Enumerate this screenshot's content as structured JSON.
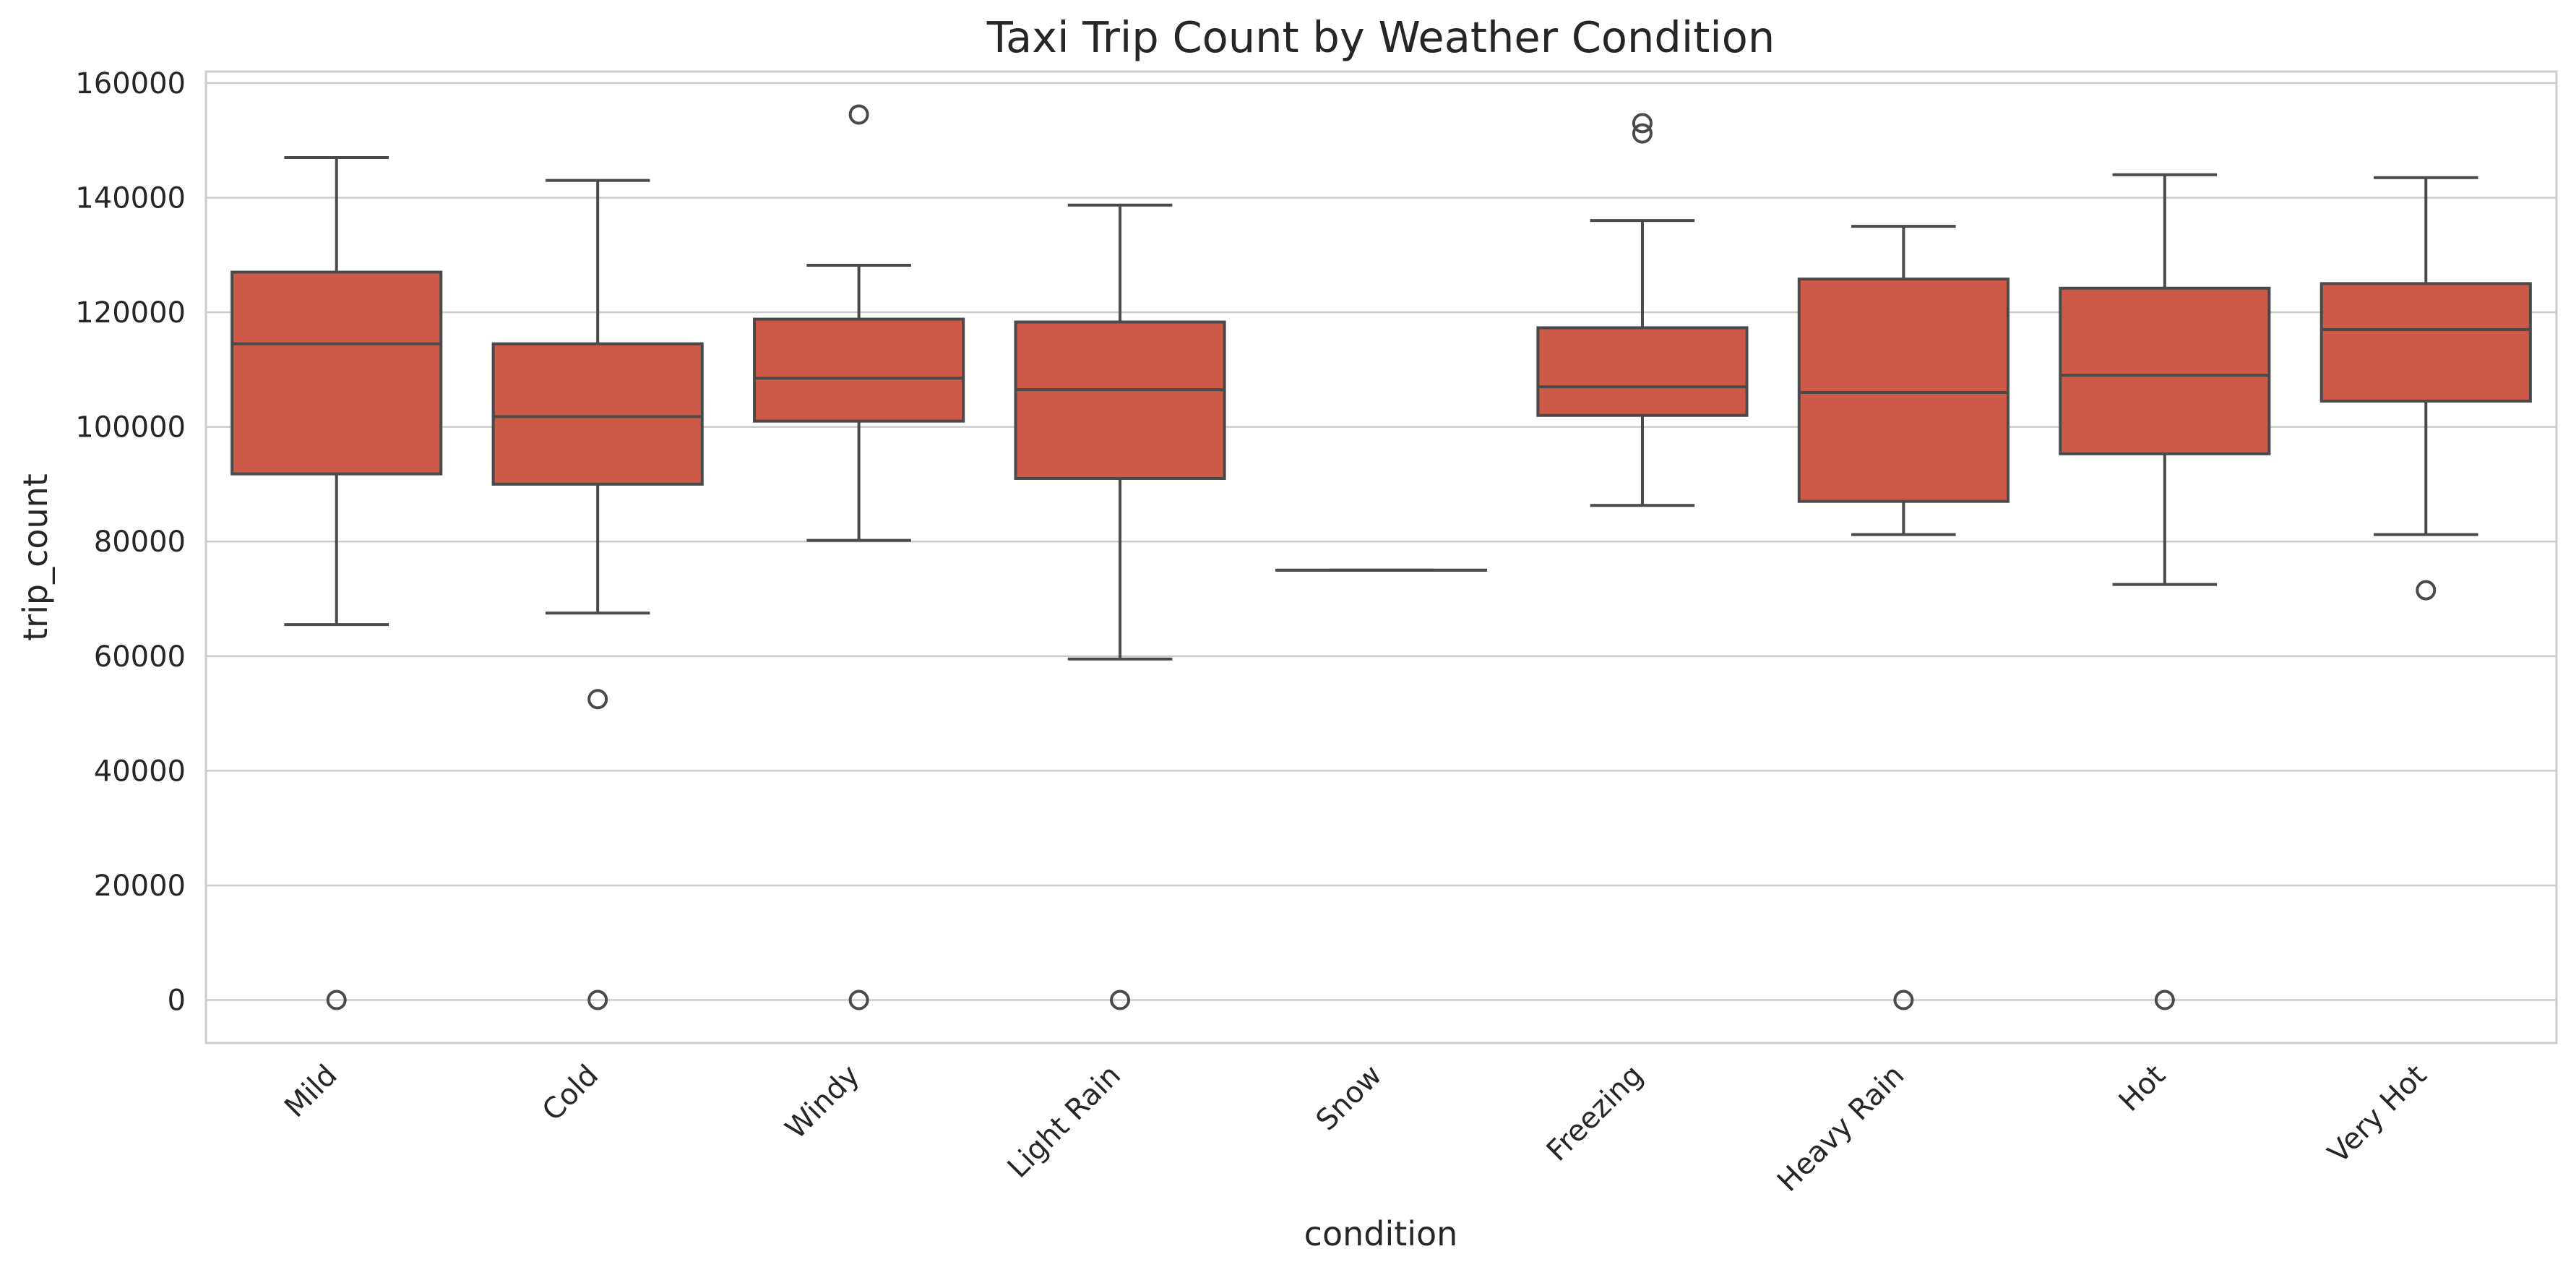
{
  "chart_data": {
    "type": "box",
    "title": "Taxi Trip Count by Weather Condition",
    "xlabel": "condition",
    "ylabel": "trip_count",
    "ylim": [
      -7500,
      162000
    ],
    "yticks": [
      0,
      20000,
      40000,
      60000,
      80000,
      100000,
      120000,
      140000,
      160000
    ],
    "ytick_labels": [
      "0",
      "20000",
      "40000",
      "60000",
      "80000",
      "100000",
      "120000",
      "140000",
      "160000"
    ],
    "grid": true,
    "box_color": "#cd5a48",
    "categories": [
      "Mild",
      "Cold",
      "Windy",
      "Light Rain",
      "Snow",
      "Freezing",
      "Heavy Rain",
      "Hot",
      "Very Hot"
    ],
    "boxes": [
      {
        "category": "Mild",
        "whisker_low": 65500,
        "q1": 91800,
        "median": 114500,
        "q3": 127000,
        "whisker_high": 147000,
        "outliers": [
          0
        ]
      },
      {
        "category": "Cold",
        "whisker_low": 67500,
        "q1": 90000,
        "median": 101800,
        "q3": 114500,
        "whisker_high": 143000,
        "outliers": [
          52500,
          0
        ]
      },
      {
        "category": "Windy",
        "whisker_low": 80200,
        "q1": 101000,
        "median": 108500,
        "q3": 118800,
        "whisker_high": 128200,
        "outliers": [
          154500,
          0
        ]
      },
      {
        "category": "Light Rain",
        "whisker_low": 59500,
        "q1": 91000,
        "median": 106500,
        "q3": 118300,
        "whisker_high": 138700,
        "outliers": [
          0
        ]
      },
      {
        "category": "Snow",
        "whisker_low": 75000,
        "q1": 75000,
        "median": 75000,
        "q3": 75000,
        "whisker_high": 75000,
        "outliers": []
      },
      {
        "category": "Freezing",
        "whisker_low": 86300,
        "q1": 102000,
        "median": 107000,
        "q3": 117300,
        "whisker_high": 136000,
        "outliers": [
          153000,
          151200
        ]
      },
      {
        "category": "Heavy Rain",
        "whisker_low": 81200,
        "q1": 87000,
        "median": 106000,
        "q3": 125800,
        "whisker_high": 135000,
        "outliers": [
          0
        ]
      },
      {
        "category": "Hot",
        "whisker_low": 72500,
        "q1": 95300,
        "median": 109000,
        "q3": 124200,
        "whisker_high": 144000,
        "outliers": [
          0
        ]
      },
      {
        "category": "Very Hot",
        "whisker_low": 81200,
        "q1": 104500,
        "median": 117000,
        "q3": 125000,
        "whisker_high": 143500,
        "outliers": [
          71500
        ]
      }
    ]
  }
}
